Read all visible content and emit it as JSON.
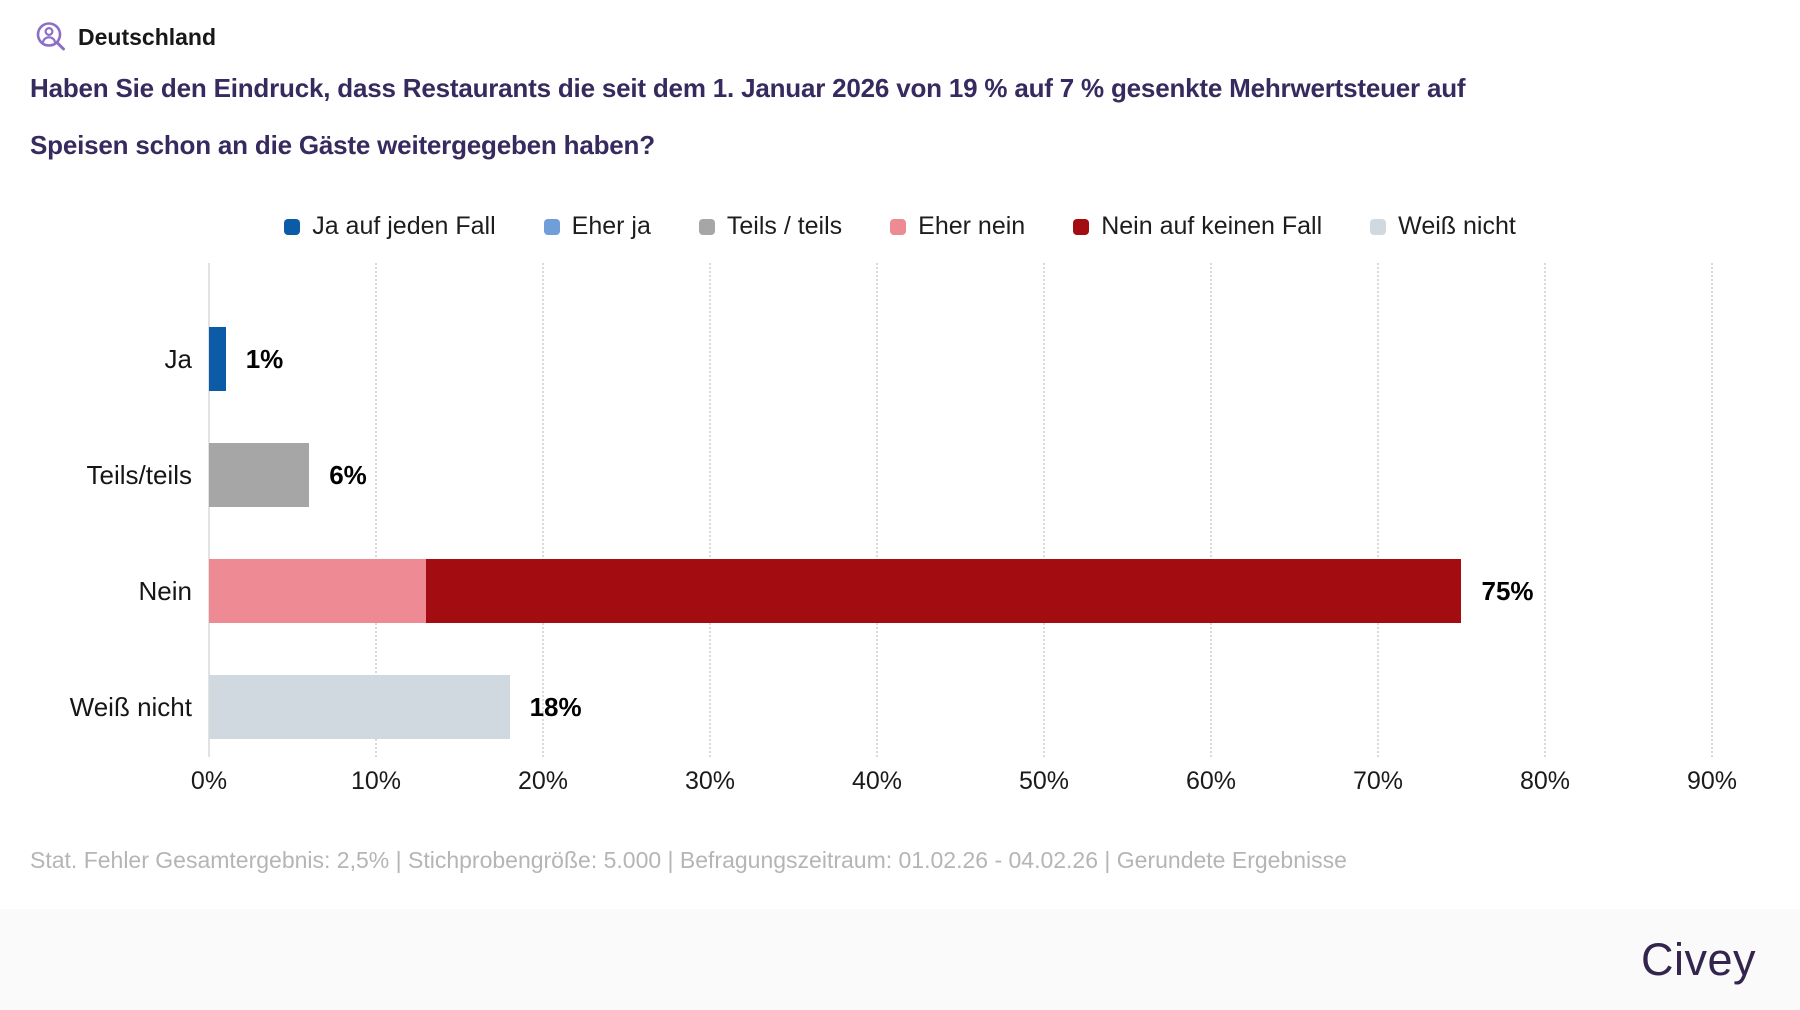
{
  "header": {
    "region": "Deutschland",
    "icon": "person-magnifier-icon",
    "icon_color": "#8d6ec7"
  },
  "title": "Haben Sie den Eindruck, dass Restaurants die seit dem 1. Januar 2026 von 19 % auf 7 % gesenkte Mehrwertsteuer auf Speisen schon an die Gäste weitergegeben haben?",
  "title_color": "#372a5e",
  "legend": [
    {
      "label": "Ja auf jeden Fall",
      "color": "#0b5ba6"
    },
    {
      "label": "Eher ja",
      "color": "#6f9ed9"
    },
    {
      "label": "Teils / teils",
      "color": "#a6a6a6"
    },
    {
      "label": "Eher nein",
      "color": "#ee8a93"
    },
    {
      "label": "Nein auf keinen Fall",
      "color": "#a30c10"
    },
    {
      "label": "Weiß nicht",
      "color": "#cfd9df"
    }
  ],
  "chart_data": {
    "type": "bar",
    "orientation": "horizontal",
    "stacked": true,
    "categories": [
      "Ja",
      "Teils/teils",
      "Nein",
      "Weiß nicht"
    ],
    "rows": [
      {
        "category": "Ja",
        "total": 1,
        "total_label": "1%",
        "segments": [
          {
            "name": "Ja auf jeden Fall",
            "value": 1,
            "color": "#0b5ba6"
          }
        ]
      },
      {
        "category": "Teils/teils",
        "total": 6,
        "total_label": "6%",
        "segments": [
          {
            "name": "Teils / teils",
            "value": 6,
            "color": "#a6a6a6"
          }
        ]
      },
      {
        "category": "Nein",
        "total": 75,
        "total_label": "75%",
        "segments": [
          {
            "name": "Eher nein",
            "value": 13,
            "color": "#ee8a93"
          },
          {
            "name": "Nein auf keinen Fall",
            "value": 62,
            "color": "#a30c10"
          }
        ]
      },
      {
        "category": "Weiß nicht",
        "total": 18,
        "total_label": "18%",
        "segments": [
          {
            "name": "Weiß nicht",
            "value": 18,
            "color": "#cfd9df"
          }
        ]
      }
    ],
    "x_ticks": [
      "0%",
      "10%",
      "20%",
      "30%",
      "40%",
      "50%",
      "60%",
      "70%",
      "80%",
      "90%"
    ],
    "xlim": [
      0,
      90
    ],
    "grid": "vertical-dotted",
    "legend_position": "top"
  },
  "footer": {
    "note": "Stat. Fehler Gesamtergebnis: 2,5% | Stichprobengröße: 5.000 | Befragungszeitraum: 01.02.26 - 04.02.26 | Gerundete Ergebnisse"
  },
  "branding": {
    "logo_text": "Civey",
    "color": "#33254d"
  }
}
